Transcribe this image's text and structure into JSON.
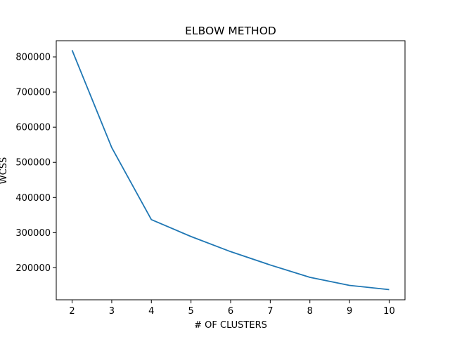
{
  "chart_data": {
    "type": "line",
    "title": "ELBOW METHOD",
    "xlabel": "# OF CLUSTERS",
    "ylabel": "WCSS",
    "x": [
      2,
      3,
      4,
      5,
      6,
      7,
      8,
      9,
      10
    ],
    "series": [
      {
        "values": [
          819000,
          542000,
          337000,
          289000,
          246000,
          208000,
          173000,
          150000,
          138000
        ],
        "color": "#1f77b4"
      }
    ],
    "xlim": [
      1.6,
      10.4
    ],
    "ylim": [
      109000,
      846000
    ],
    "xticks": [
      {
        "value": 2,
        "label": "2"
      },
      {
        "value": 3,
        "label": "3"
      },
      {
        "value": 4,
        "label": "4"
      },
      {
        "value": 5,
        "label": "5"
      },
      {
        "value": 6,
        "label": "6"
      },
      {
        "value": 7,
        "label": "7"
      },
      {
        "value": 8,
        "label": "8"
      },
      {
        "value": 9,
        "label": "9"
      },
      {
        "value": 10,
        "label": "10"
      }
    ],
    "yticks": [
      {
        "value": 200000,
        "label": "200000"
      },
      {
        "value": 300000,
        "label": "300000"
      },
      {
        "value": 400000,
        "label": "400000"
      },
      {
        "value": 500000,
        "label": "500000"
      },
      {
        "value": 600000,
        "label": "600000"
      },
      {
        "value": 700000,
        "label": "700000"
      },
      {
        "value": 800000,
        "label": "800000"
      }
    ],
    "grid": false,
    "legend": "none"
  }
}
